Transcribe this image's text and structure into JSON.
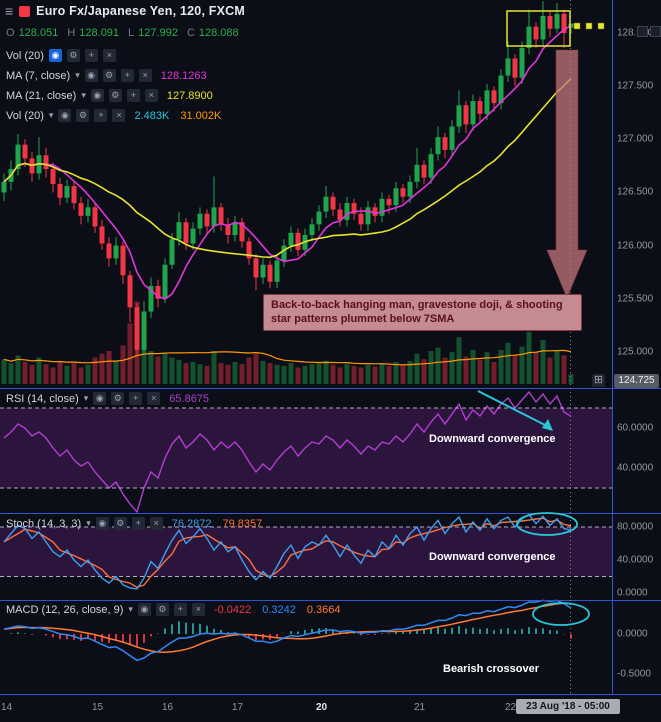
{
  "header": {
    "symbol_title": "Euro Fx/Japanese Yen, 120, FXCM",
    "ohlc": {
      "o_label": "O",
      "o": "128.051",
      "h_label": "H",
      "h": "128.091",
      "l_label": "L",
      "l": "127.992",
      "c_label": "C",
      "c": "128.088"
    }
  },
  "icons": {
    "menu": "≡",
    "eye": "◉",
    "gear": "⚙",
    "plus": "+",
    "close": "×",
    "caret": "▾",
    "expand": "⊞"
  },
  "legends": {
    "vol_overlay": {
      "title": "Vol (20)"
    },
    "ma7": {
      "title": "MA (7, close)",
      "value": "128.1263"
    },
    "ma21": {
      "title": "MA (21, close)",
      "value": "127.8900"
    },
    "vol": {
      "title": "Vol (20)",
      "value1": "2.483K",
      "value2": "31.002K"
    },
    "rsi": {
      "title": "RSI (14, close)",
      "value": "65.8675"
    },
    "stoch": {
      "title": "Stoch (14, 3, 3)",
      "k": "76.2872",
      "d": "79.8357"
    },
    "macd": {
      "title": "MACD (12, 26, close, 9)",
      "hist": "-0.0422",
      "macd": "0.3242",
      "signal": "0.3664"
    }
  },
  "annotations": {
    "candle_note": "Back-to-back hanging man, gravestone doji, & shooting star patterns plummet below 7SMA",
    "rsi_note": "Downward convergence",
    "stoch_note": "Downward convergence",
    "macd_note": "Bearish crossover"
  },
  "colors": {
    "background": "#0c0e17",
    "separator": "#2f55d4",
    "candle_up": "#1fa54c",
    "candle_down": "#f23645",
    "ma7": "#e036d8",
    "ma21": "#e6e22e",
    "vol_ma": "#ff9800",
    "vol_value": "#26c6da",
    "rsi_line": "#b13fd1",
    "band_fill": "rgba(120,40,150,0.30)",
    "band_line": "#c9ccd6",
    "stoch_k": "#3f9ff0",
    "stoch_d": "#ff6f3c",
    "macd_line": "#2f8af5",
    "macd_signal": "#ff7a33",
    "hist_up": "#26a69a",
    "hist_down": "#f23645",
    "ohlc_value": "#2eae49",
    "annotation_rose": "rgba(196,120,126,0.82)",
    "annotation_rose_edge": "#8a3a42",
    "highlight_yellow": "#e8e435",
    "cyan": "#2bc6d6",
    "dotted_line": "#9094a6"
  },
  "chart_data": {
    "type": "candlestick",
    "title": "Euro Fx/Japanese Yen, 120, FXCM",
    "symbol": "Euro Fx/Japanese Yen",
    "timeframe_minutes": 120,
    "exchange": "FXCM",
    "price_axis": {
      "labels": [
        "128.000",
        "127.500",
        "127.000",
        "126.500",
        "126.000",
        "125.500",
        "125.000"
      ],
      "bottom_scale_value": "124.725"
    },
    "time_axis": {
      "labels": [
        {
          "text": "14",
          "bar": 0,
          "strong": false
        },
        {
          "text": "15",
          "bar": 13,
          "strong": false
        },
        {
          "text": "16",
          "bar": 23,
          "strong": false
        },
        {
          "text": "17",
          "bar": 33,
          "strong": false
        },
        {
          "text": "20",
          "bar": 45,
          "strong": true
        },
        {
          "text": "21",
          "bar": 59,
          "strong": false
        },
        {
          "text": "22",
          "bar": 72,
          "strong": false
        }
      ],
      "current_time_tag": "23 Aug '18 - 05:00"
    },
    "candles": [
      [
        126.5,
        126.68,
        126.42,
        126.6,
        45
      ],
      [
        126.6,
        126.8,
        126.52,
        126.72,
        38
      ],
      [
        126.72,
        127.05,
        126.66,
        126.95,
        52
      ],
      [
        126.95,
        127.0,
        126.74,
        126.82,
        40
      ],
      [
        126.82,
        126.88,
        126.6,
        126.68,
        35
      ],
      [
        126.68,
        127.02,
        126.62,
        126.85,
        48
      ],
      [
        126.85,
        126.92,
        126.64,
        126.72,
        36
      ],
      [
        126.72,
        126.78,
        126.5,
        126.58,
        30
      ],
      [
        126.58,
        126.64,
        126.38,
        126.45,
        42
      ],
      [
        126.45,
        126.62,
        126.4,
        126.56,
        33
      ],
      [
        126.56,
        126.6,
        126.34,
        126.4,
        38
      ],
      [
        126.4,
        126.46,
        126.2,
        126.28,
        30
      ],
      [
        126.28,
        126.44,
        126.22,
        126.36,
        35
      ],
      [
        126.36,
        126.4,
        126.12,
        126.18,
        48
      ],
      [
        126.18,
        126.24,
        125.96,
        126.02,
        55
      ],
      [
        126.02,
        126.08,
        125.8,
        125.88,
        60
      ],
      [
        125.88,
        126.08,
        125.82,
        126.0,
        42
      ],
      [
        126.0,
        126.04,
        125.64,
        125.72,
        70
      ],
      [
        125.72,
        125.76,
        125.28,
        125.42,
        110
      ],
      [
        125.42,
        125.46,
        124.95,
        125.02,
        150
      ],
      [
        125.02,
        125.48,
        124.98,
        125.38,
        95
      ],
      [
        125.38,
        125.7,
        125.32,
        125.62,
        60
      ],
      [
        125.62,
        125.68,
        125.42,
        125.5,
        50
      ],
      [
        125.5,
        125.88,
        125.46,
        125.82,
        55
      ],
      [
        125.82,
        126.12,
        125.78,
        126.06,
        48
      ],
      [
        126.06,
        126.32,
        126.0,
        126.22,
        44
      ],
      [
        126.22,
        126.26,
        125.96,
        126.02,
        38
      ],
      [
        126.02,
        126.22,
        125.96,
        126.16,
        40
      ],
      [
        126.16,
        126.36,
        126.1,
        126.3,
        36
      ],
      [
        126.3,
        126.34,
        126.1,
        126.18,
        33
      ],
      [
        126.18,
        126.65,
        126.12,
        126.36,
        60
      ],
      [
        126.36,
        126.4,
        126.14,
        126.2,
        38
      ],
      [
        126.2,
        126.26,
        126.02,
        126.1,
        35
      ],
      [
        126.1,
        126.28,
        126.04,
        126.22,
        40
      ],
      [
        126.22,
        126.26,
        125.98,
        126.04,
        36
      ],
      [
        126.04,
        126.08,
        125.82,
        125.88,
        48
      ],
      [
        125.88,
        125.92,
        125.58,
        125.7,
        55
      ],
      [
        125.7,
        125.88,
        125.64,
        125.82,
        42
      ],
      [
        125.82,
        125.86,
        125.6,
        125.66,
        38
      ],
      [
        125.66,
        125.92,
        125.6,
        125.86,
        35
      ],
      [
        125.86,
        126.06,
        125.8,
        126.0,
        33
      ],
      [
        126.0,
        126.18,
        125.94,
        126.12,
        38
      ],
      [
        126.12,
        126.16,
        125.9,
        125.96,
        30
      ],
      [
        125.96,
        126.16,
        125.9,
        126.1,
        33
      ],
      [
        126.1,
        126.26,
        126.04,
        126.2,
        36
      ],
      [
        126.2,
        126.38,
        126.14,
        126.32,
        38
      ],
      [
        126.32,
        126.56,
        126.26,
        126.46,
        42
      ],
      [
        126.46,
        126.5,
        126.28,
        126.34,
        35
      ],
      [
        126.34,
        126.4,
        126.18,
        126.24,
        30
      ],
      [
        126.24,
        126.46,
        126.18,
        126.4,
        36
      ],
      [
        126.4,
        126.44,
        126.24,
        126.3,
        33
      ],
      [
        126.3,
        126.36,
        126.14,
        126.2,
        30
      ],
      [
        126.2,
        126.42,
        126.14,
        126.36,
        35
      ],
      [
        126.36,
        126.4,
        126.22,
        126.28,
        32
      ],
      [
        126.28,
        126.5,
        126.22,
        126.44,
        38
      ],
      [
        126.44,
        126.48,
        126.3,
        126.38,
        33
      ],
      [
        126.38,
        126.6,
        126.32,
        126.54,
        40
      ],
      [
        126.54,
        126.58,
        126.4,
        126.46,
        35
      ],
      [
        126.46,
        126.66,
        126.4,
        126.6,
        42
      ],
      [
        126.6,
        126.92,
        126.54,
        126.76,
        55
      ],
      [
        126.76,
        126.8,
        126.58,
        126.64,
        45
      ],
      [
        126.64,
        126.92,
        126.58,
        126.86,
        60
      ],
      [
        126.86,
        127.12,
        126.8,
        127.02,
        66
      ],
      [
        127.02,
        127.06,
        126.82,
        126.9,
        48
      ],
      [
        126.9,
        127.18,
        126.84,
        127.12,
        58
      ],
      [
        127.12,
        127.46,
        127.06,
        127.32,
        85
      ],
      [
        127.32,
        127.36,
        127.06,
        127.14,
        50
      ],
      [
        127.14,
        127.42,
        127.08,
        127.36,
        62
      ],
      [
        127.36,
        127.4,
        127.16,
        127.24,
        44
      ],
      [
        127.24,
        127.52,
        127.18,
        127.46,
        58
      ],
      [
        127.46,
        127.5,
        127.26,
        127.34,
        40
      ],
      [
        127.34,
        127.66,
        127.28,
        127.6,
        62
      ],
      [
        127.6,
        127.92,
        127.54,
        127.76,
        75
      ],
      [
        127.76,
        127.8,
        127.5,
        127.58,
        52
      ],
      [
        127.58,
        127.92,
        127.52,
        127.86,
        68
      ],
      [
        127.86,
        128.22,
        127.8,
        128.06,
        95
      ],
      [
        128.06,
        128.1,
        127.86,
        127.94,
        58
      ],
      [
        127.94,
        128.3,
        127.88,
        128.16,
        80
      ],
      [
        128.16,
        128.2,
        127.96,
        128.04,
        48
      ],
      [
        128.04,
        128.28,
        128.0,
        128.18,
        60
      ],
      [
        128.18,
        128.22,
        127.86,
        128.0,
        52
      ],
      [
        128.051,
        128.091,
        127.992,
        128.088,
        18
      ]
    ],
    "indicators": {
      "ma7": {
        "period": 7,
        "source": "close"
      },
      "ma21": {
        "period": 21,
        "source": "close"
      },
      "vol_ma": {
        "period": 20
      },
      "rsi": {
        "period": 14,
        "levels": [
          70,
          30
        ],
        "scale_labels": [
          {
            "v": 60,
            "text": "60.0000"
          },
          {
            "v": 40,
            "text": "40.0000"
          }
        ],
        "values": [
          55,
          58,
          62,
          60,
          56,
          58,
          55,
          50,
          46,
          49,
          44,
          41,
          43,
          38,
          34,
          30,
          33,
          27,
          22,
          18,
          30,
          38,
          35,
          45,
          52,
          56,
          50,
          53,
          57,
          54,
          49,
          53,
          50,
          53,
          49,
          43,
          38,
          42,
          39,
          44,
          48,
          51,
          46,
          50,
          53,
          52,
          56,
          54,
          50,
          54,
          51,
          47,
          51,
          49,
          53,
          52,
          56,
          53,
          57,
          62,
          58,
          63,
          67,
          62,
          67,
          72,
          64,
          69,
          66,
          71,
          67,
          72,
          75,
          70,
          74,
          78,
          73,
          77,
          72,
          76,
          68,
          65.87
        ]
      },
      "stoch": {
        "params": [
          14,
          3,
          3
        ],
        "levels": [
          80,
          20
        ],
        "scale_labels": [
          {
            "v": 80,
            "text": "80.0000"
          },
          {
            "v": 40,
            "text": "40.0000"
          },
          {
            "v": 0,
            "text": "0.0000"
          }
        ],
        "k": [
          62,
          72,
          82,
          78,
          66,
          74,
          62,
          50,
          44,
          52,
          40,
          32,
          40,
          28,
          18,
          12,
          20,
          10,
          6,
          5,
          18,
          38,
          30,
          48,
          64,
          76,
          60,
          68,
          78,
          66,
          52,
          62,
          50,
          56,
          40,
          26,
          16,
          26,
          18,
          32,
          48,
          58,
          42,
          56,
          62,
          58,
          70,
          58,
          44,
          58,
          46,
          36,
          52,
          44,
          62,
          54,
          70,
          58,
          72,
          80,
          64,
          78,
          88,
          72,
          84,
          92,
          74,
          86,
          76,
          90,
          78,
          88,
          92,
          80,
          90,
          95,
          84,
          93,
          82,
          90,
          78,
          76.29
        ]
      },
      "macd": {
        "params": [
          12,
          26,
          9
        ],
        "scale_labels": [
          {
            "v": 0,
            "text": "0.0000"
          },
          {
            "v": -0.5,
            "text": "-0.5000"
          }
        ],
        "values": [
          0.06,
          0.08,
          0.1,
          0.09,
          0.07,
          0.08,
          0.06,
          0.03,
          0.0,
          -0.01,
          -0.03,
          -0.06,
          -0.05,
          -0.09,
          -0.13,
          -0.17,
          -0.16,
          -0.21,
          -0.27,
          -0.33,
          -0.3,
          -0.24,
          -0.22,
          -0.16,
          -0.1,
          -0.05,
          -0.05,
          -0.03,
          0.0,
          0.01,
          0.0,
          0.01,
          0.0,
          0.01,
          -0.01,
          -0.05,
          -0.09,
          -0.09,
          -0.11,
          -0.09,
          -0.05,
          -0.02,
          -0.03,
          -0.01,
          0.01,
          0.03,
          0.05,
          0.05,
          0.03,
          0.04,
          0.03,
          0.01,
          0.02,
          0.02,
          0.04,
          0.04,
          0.06,
          0.06,
          0.08,
          0.11,
          0.11,
          0.14,
          0.17,
          0.17,
          0.2,
          0.24,
          0.23,
          0.26,
          0.26,
          0.29,
          0.28,
          0.31,
          0.34,
          0.33,
          0.36,
          0.4,
          0.4,
          0.42,
          0.41,
          0.42,
          0.38,
          0.3242
        ]
      }
    }
  }
}
